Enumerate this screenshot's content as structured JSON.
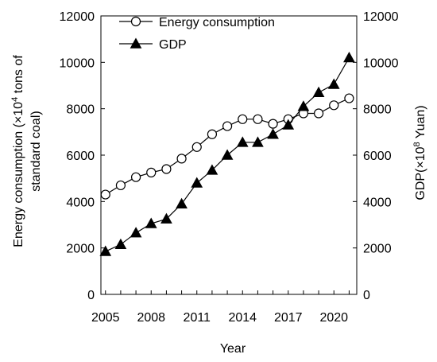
{
  "chart_data": {
    "type": "line",
    "xlabel": "Year",
    "ylabel_left": "Energy consumption (×10⁴ tons of standard coal)",
    "ylabel_left_lines": [
      "Energy consumption (×10",
      "4",
      " tons of",
      "standard coal)"
    ],
    "ylabel_right": "GDP(×10⁸ Yuan)",
    "ylabel_right_parts": [
      "GDP(×10",
      "8",
      " Yuan)"
    ],
    "x": [
      2005,
      2006,
      2007,
      2008,
      2009,
      2010,
      2011,
      2012,
      2013,
      2014,
      2015,
      2016,
      2017,
      2018,
      2019,
      2020,
      2021
    ],
    "xticks": [
      2005,
      2008,
      2011,
      2014,
      2017,
      2020
    ],
    "xlim": [
      2004.7,
      2021.5
    ],
    "ylim_left": [
      0,
      12000
    ],
    "ylim_right": [
      0,
      12000
    ],
    "yticks": [
      0,
      2000,
      4000,
      6000,
      8000,
      10000,
      12000
    ],
    "grid": false,
    "legend_position": "top-left",
    "series": [
      {
        "name": "Energy consumption",
        "marker": "open-circle",
        "axis": "left",
        "values": [
          4300,
          4700,
          5050,
          5250,
          5400,
          5850,
          6350,
          6900,
          7250,
          7550,
          7550,
          7350,
          7550,
          7800,
          7800,
          8150,
          8450
        ]
      },
      {
        "name": "GDP",
        "marker": "filled-triangle",
        "axis": "right",
        "values": [
          1850,
          2150,
          2650,
          3050,
          3250,
          3900,
          4800,
          5350,
          6000,
          6550,
          6550,
          6900,
          7300,
          8100,
          8700,
          9050,
          10200
        ]
      }
    ],
    "colors": {
      "line": "#000000",
      "marker_fill_open": "#ffffff",
      "marker_fill_solid": "#000000"
    }
  }
}
